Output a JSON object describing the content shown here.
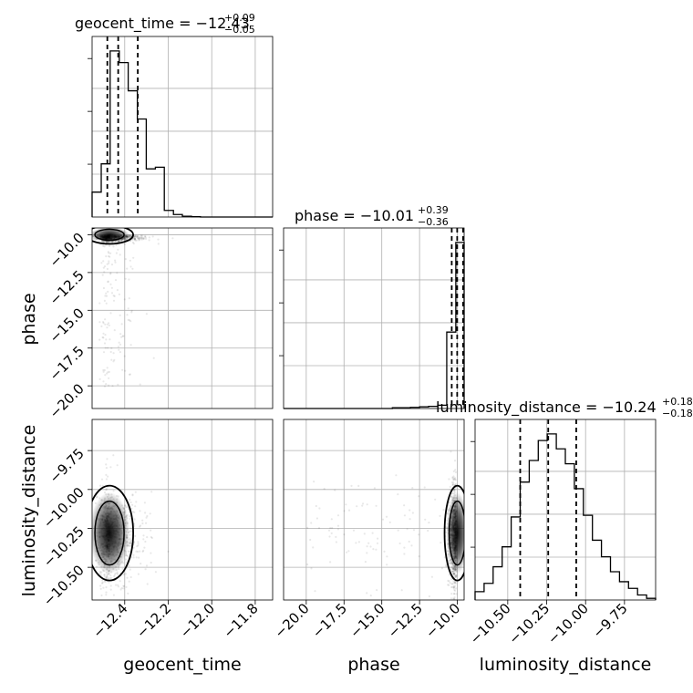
{
  "chart_data": {
    "type": "corner",
    "parameters": [
      "geocent_time",
      "phase",
      "luminosity_distance"
    ],
    "titles": [
      {
        "param": "geocent_time",
        "median": "−12.43",
        "upper": "+0.09",
        "lower": "−0.05"
      },
      {
        "param": "phase",
        "median": "−10.01",
        "upper": "+0.39",
        "lower": "−0.36"
      },
      {
        "param": "luminosity_distance",
        "median": "−10.24",
        "upper": "+0.18",
        "lower": "−0.18"
      }
    ],
    "ranges": {
      "geocent_time": [
        -12.55,
        -11.72
      ],
      "phase": [
        -21.5,
        -9.55
      ],
      "luminosity_distance": [
        -10.71,
        -9.55
      ]
    },
    "ticks": {
      "geocent_time": [
        "−12.4",
        "−12.2",
        "−12.0",
        "−11.8"
      ],
      "phase": [
        "−20.0",
        "−17.5",
        "−15.0",
        "−12.5",
        "−10.0"
      ],
      "luminosity_distance": [
        "−10.50",
        "−10.25",
        "−10.00",
        "−9.75"
      ]
    },
    "tick_values": {
      "geocent_time": [
        -12.4,
        -12.2,
        -12.0,
        -11.8
      ],
      "phase": [
        -20.0,
        -17.5,
        -15.0,
        -12.5,
        -10.0
      ],
      "luminosity_distance": [
        -10.5,
        -10.25,
        -10.0,
        -9.75
      ]
    },
    "quantiles": {
      "geocent_time": [
        -12.48,
        -12.43,
        -12.34
      ],
      "phase": [
        -10.37,
        -10.01,
        -9.62
      ],
      "luminosity_distance": [
        -10.42,
        -10.24,
        -10.06
      ]
    },
    "histograms": {
      "geocent_time": {
        "edges": [
          -12.55,
          -12.508,
          -12.467,
          -12.425,
          -12.384,
          -12.342,
          -12.301,
          -12.259,
          -12.218,
          -12.176,
          -12.135,
          -12.093,
          -12.052,
          -12.01,
          -11.969,
          -11.927,
          -11.886,
          -11.844,
          -11.803,
          -11.761,
          -11.72
        ],
        "counts": [
          0.15,
          0.32,
          1.0,
          0.93,
          0.76,
          0.59,
          0.29,
          0.3,
          0.04,
          0.015,
          0.005,
          0.002,
          0,
          0,
          0,
          0,
          0,
          0,
          0,
          0
        ]
      },
      "phase": {
        "edges": [
          -21.5,
          -20.9,
          -20.3,
          -19.7,
          -19.1,
          -18.5,
          -17.9,
          -17.3,
          -16.7,
          -16.1,
          -15.5,
          -14.9,
          -14.3,
          -13.7,
          -13.1,
          -12.5,
          -11.9,
          -11.3,
          -10.7,
          -10.1,
          -9.55
        ],
        "counts": [
          0,
          0,
          0,
          0,
          0,
          0,
          0,
          0,
          0,
          0,
          0,
          0,
          0.005,
          0.005,
          0.007,
          0.01,
          0.013,
          0.02,
          0.46,
          1.0
        ]
      },
      "luminosity_distance": {
        "edges": [
          -10.71,
          -10.652,
          -10.594,
          -10.536,
          -10.478,
          -10.42,
          -10.362,
          -10.304,
          -10.246,
          -10.188,
          -10.13,
          -10.072,
          -10.014,
          -9.956,
          -9.898,
          -9.84,
          -9.782,
          -9.724,
          -9.666,
          -9.608,
          -9.55
        ],
        "counts": [
          0.05,
          0.1,
          0.2,
          0.32,
          0.5,
          0.71,
          0.84,
          0.96,
          1.0,
          0.91,
          0.82,
          0.67,
          0.51,
          0.36,
          0.26,
          0.17,
          0.11,
          0.07,
          0.03,
          0.01
        ]
      }
    },
    "axis_labels": {
      "geocent_time": "geocent_time",
      "phase": "phase",
      "luminosity_distance": "luminosity_distance"
    },
    "grid": true
  }
}
